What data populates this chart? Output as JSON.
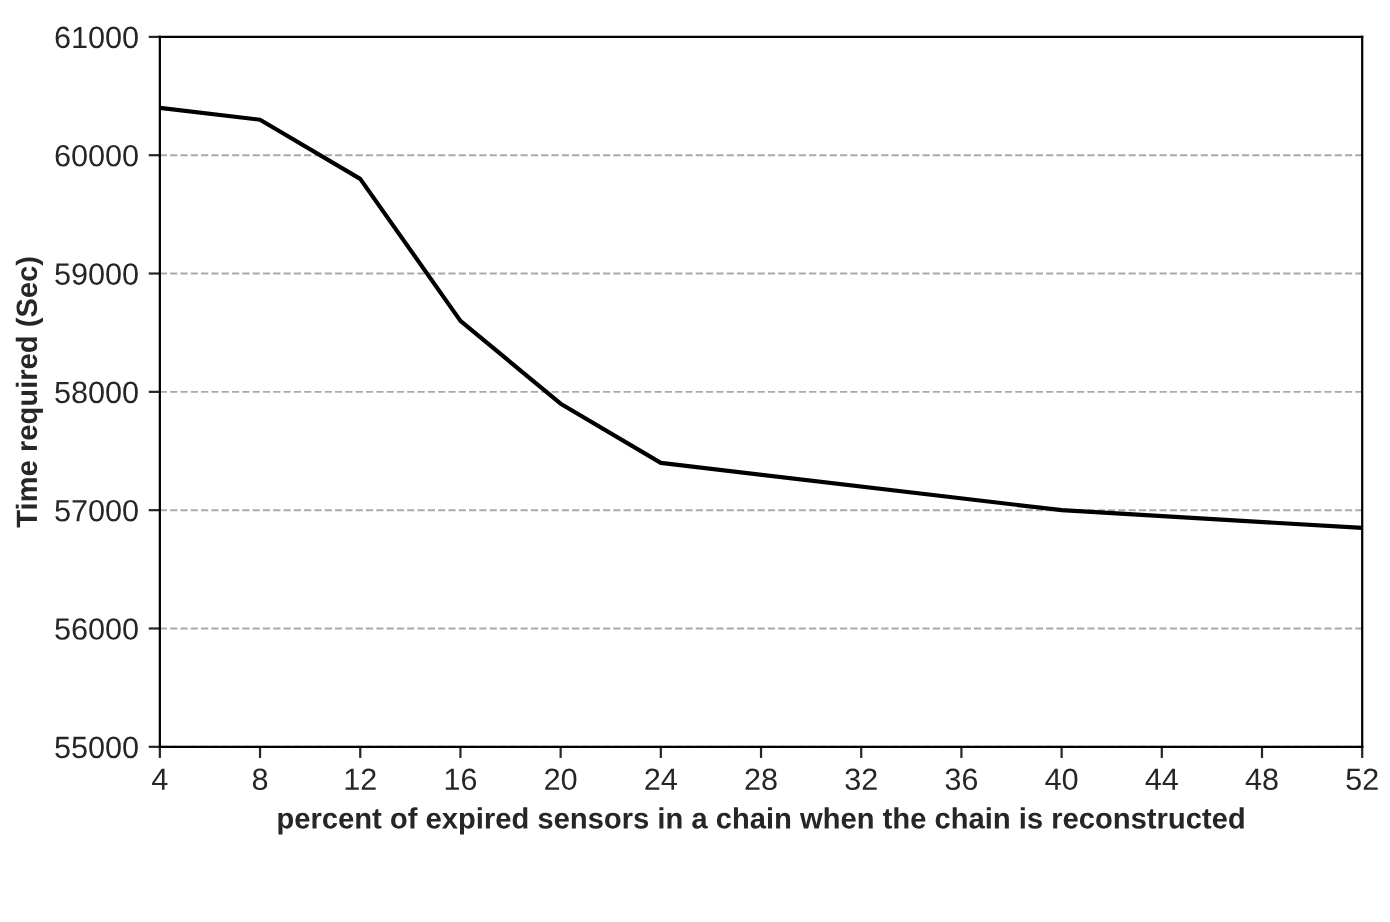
{
  "chart_data": {
    "type": "line",
    "xlabel": "percent of expired sensors in a chain when the chain is reconstructed",
    "ylabel": "Time required (Sec)",
    "x": [
      4,
      8,
      12,
      16,
      20,
      24,
      40,
      52
    ],
    "series": [
      {
        "color": "#000000",
        "values": [
          60400,
          60300,
          59800,
          58600,
          57900,
          57400,
          57000,
          56850
        ]
      }
    ],
    "xlim": [
      4,
      52
    ],
    "xticks": [
      4,
      8,
      12,
      16,
      20,
      24,
      28,
      32,
      36,
      40,
      44,
      48,
      52
    ],
    "ylim": [
      55000,
      61000
    ],
    "yticks": [
      55000,
      56000,
      57000,
      58000,
      59000,
      60000,
      61000
    ],
    "grid": "y",
    "legend": false,
    "marker": "none",
    "line_style": "solid"
  }
}
